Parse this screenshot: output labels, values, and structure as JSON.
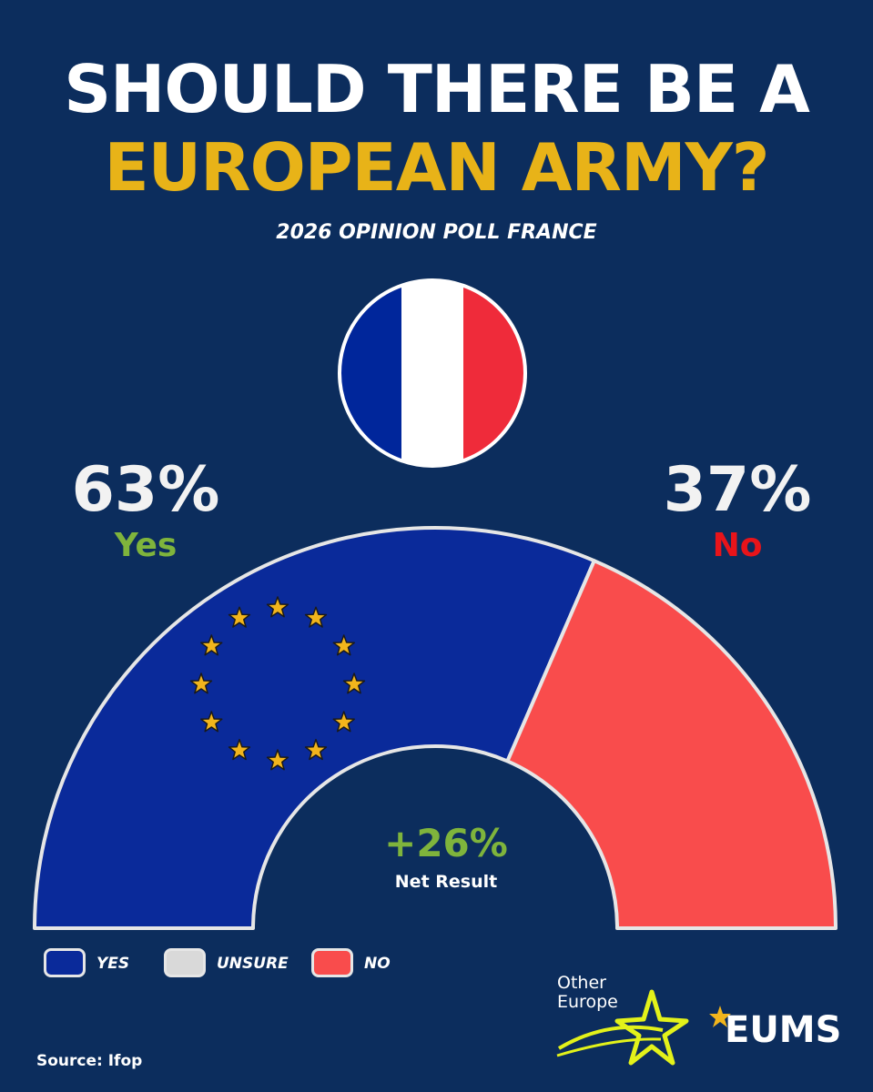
{
  "header": {
    "title_line1": "SHOULD THERE BE A",
    "title_line2": "EUROPEAN ARMY?",
    "subtitle": "2026 OPINION POLL FRANCE"
  },
  "results": {
    "yes_percent": "63%",
    "yes_label": "Yes",
    "no_percent": "37%",
    "no_label": "No",
    "net_value": "+26%",
    "net_label": "Net Result"
  },
  "legend": [
    {
      "label": "YES",
      "color": "#0a2a9a"
    },
    {
      "label": "UNSURE",
      "color": "#d9d9d9"
    },
    {
      "label": "NO",
      "color": "#f94c4c"
    }
  ],
  "source": "Source: Ifop",
  "logos": {
    "other_line1": "Other",
    "other_line2": "Europe",
    "eums": "EUMS"
  },
  "colors": {
    "background": "#0c2d5d",
    "title_accent": "#e8b318",
    "yes": "#0a2a9a",
    "no": "#f94c4c",
    "flag_blue": "#00269b",
    "flag_white": "#ffffff",
    "flag_red": "#ef2b3a",
    "star": "#f2b51c"
  },
  "chart_data": {
    "type": "pie",
    "variant": "half-donut",
    "categories": [
      "Yes",
      "No"
    ],
    "values": [
      63,
      37
    ],
    "colors": [
      "#0a2a9a",
      "#f94c4c"
    ],
    "legend": [
      "YES",
      "UNSURE",
      "NO"
    ],
    "legend_placement": "bottom-left",
    "annotation": "+26%"
  }
}
